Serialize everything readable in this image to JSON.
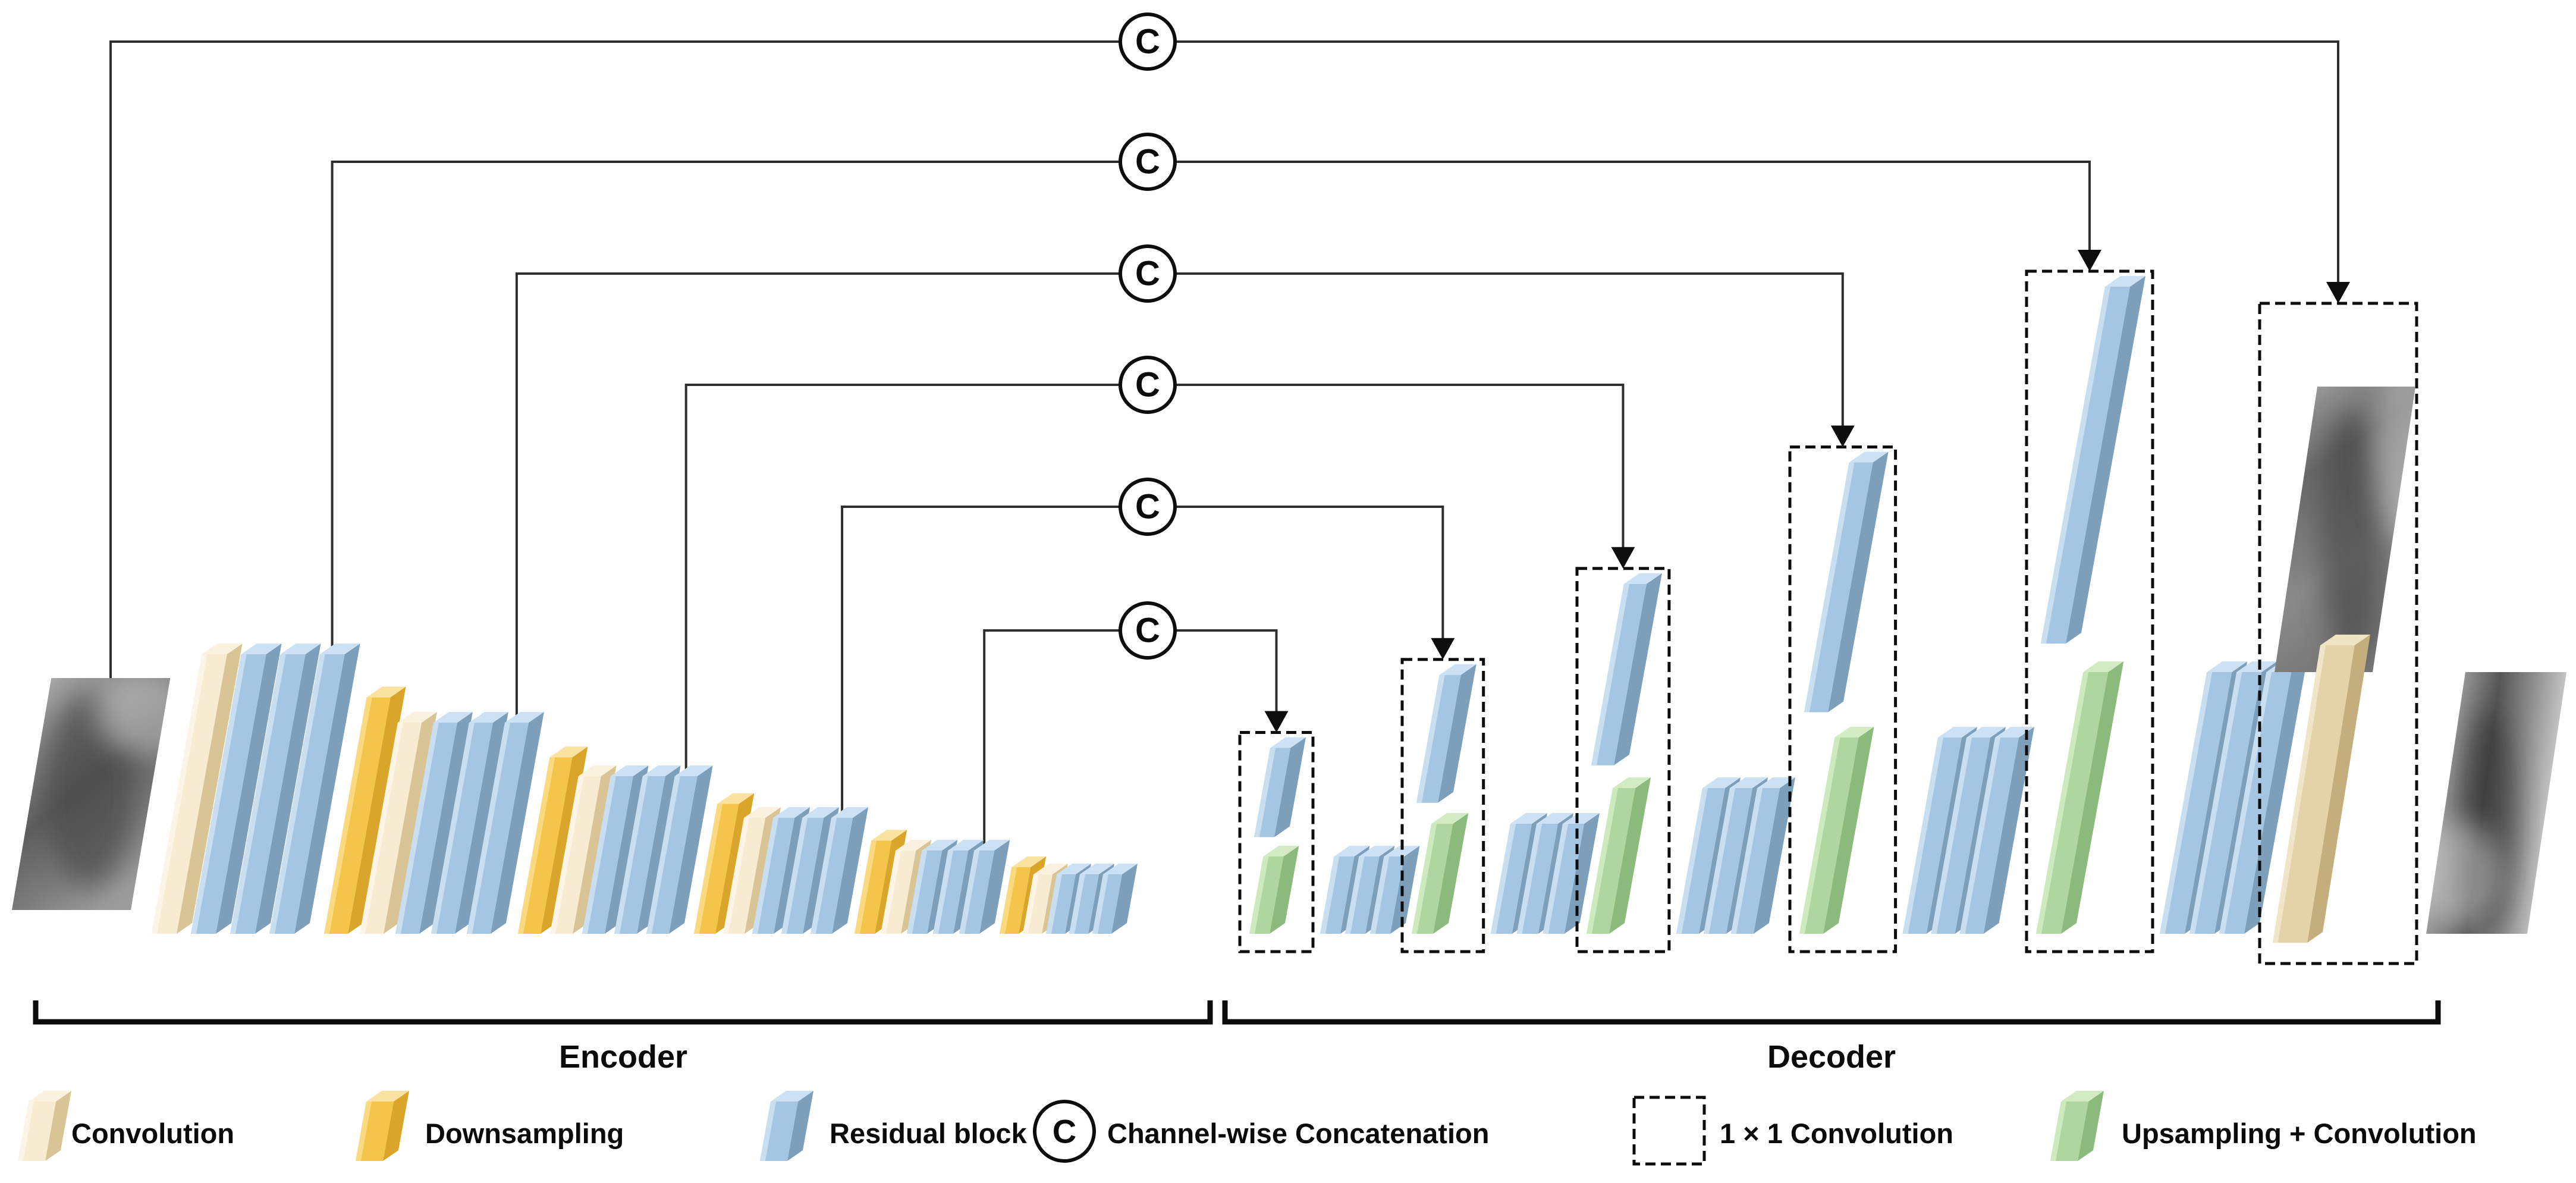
{
  "title": "Encoder-Decoder residual U-Net architecture diagram",
  "section_labels": {
    "encoder": "Encoder",
    "decoder": "Decoder"
  },
  "concat_symbol": "C",
  "legend": {
    "items": [
      {
        "swatch": "convolution",
        "label": "Convolution"
      },
      {
        "swatch": "downsampling",
        "label": "Downsampling"
      },
      {
        "swatch": "residual",
        "label": "Residual block"
      },
      {
        "swatch": "concat",
        "label": "Channel-wise Concatenation"
      },
      {
        "swatch": "conv1x1",
        "label": "1 × 1 Convolution"
      },
      {
        "swatch": "upsampling",
        "label": "Upsampling + Convolution"
      }
    ]
  },
  "colors": {
    "convolution": {
      "front": "#F7ECD2",
      "side": "#D9C496",
      "top": "#FAF2DF",
      "strip": "#FCF5E6"
    },
    "downsampling": {
      "front": "#F5C54B",
      "side": "#D9A62B",
      "top": "#FAE3A0",
      "strip": "#FAD97F"
    },
    "residual": {
      "front": "#A5C6E2",
      "side": "#7E9FBA",
      "top": "#CCE2F4",
      "strip": "#C8DFF1"
    },
    "upsampling": {
      "front": "#AED6A0",
      "side": "#8CB97C",
      "top": "#D2EBC3",
      "strip": "#CDE9BE"
    },
    "final_conv": {
      "front": "#E4D3A9",
      "side": "#C4AE7E",
      "top": "#EFE4C4",
      "strip": "#F0E5C6"
    },
    "line": "#2e2e2e",
    "outline": "#0d0d0d"
  },
  "architecture": {
    "encoder_stages": [
      {
        "layers": [
          "convolution",
          "residual",
          "residual",
          "residual"
        ]
      },
      {
        "layers": [
          "downsampling",
          "convolution",
          "residual",
          "residual",
          "residual"
        ]
      },
      {
        "layers": [
          "downsampling",
          "convolution",
          "residual",
          "residual",
          "residual"
        ]
      },
      {
        "layers": [
          "downsampling",
          "convolution",
          "residual",
          "residual",
          "residual"
        ]
      },
      {
        "layers": [
          "downsampling",
          "convolution",
          "residual",
          "residual",
          "residual"
        ]
      },
      {
        "layers": [
          "downsampling",
          "convolution",
          "residual",
          "residual",
          "residual"
        ]
      }
    ],
    "decoder_stages": [
      {
        "box": [
          "residual",
          "upsampling"
        ],
        "after": [
          "residual",
          "residual",
          "residual"
        ]
      },
      {
        "box": [
          "residual",
          "upsampling"
        ],
        "after": [
          "residual",
          "residual",
          "residual"
        ]
      },
      {
        "box": [
          "residual",
          "upsampling"
        ],
        "after": [
          "residual",
          "residual",
          "residual"
        ]
      },
      {
        "box": [
          "residual",
          "upsampling"
        ],
        "after": [
          "residual",
          "residual",
          "residual"
        ]
      },
      {
        "box": [
          "residual",
          "upsampling"
        ],
        "after": [
          "residual",
          "residual",
          "residual"
        ]
      }
    ],
    "output_stage": {
      "box": [
        "input_image_skip",
        "final_conv"
      ]
    },
    "skip_connections": 6,
    "io": {
      "input": "blurred grayscale input image",
      "output": "grayscale output image"
    }
  }
}
